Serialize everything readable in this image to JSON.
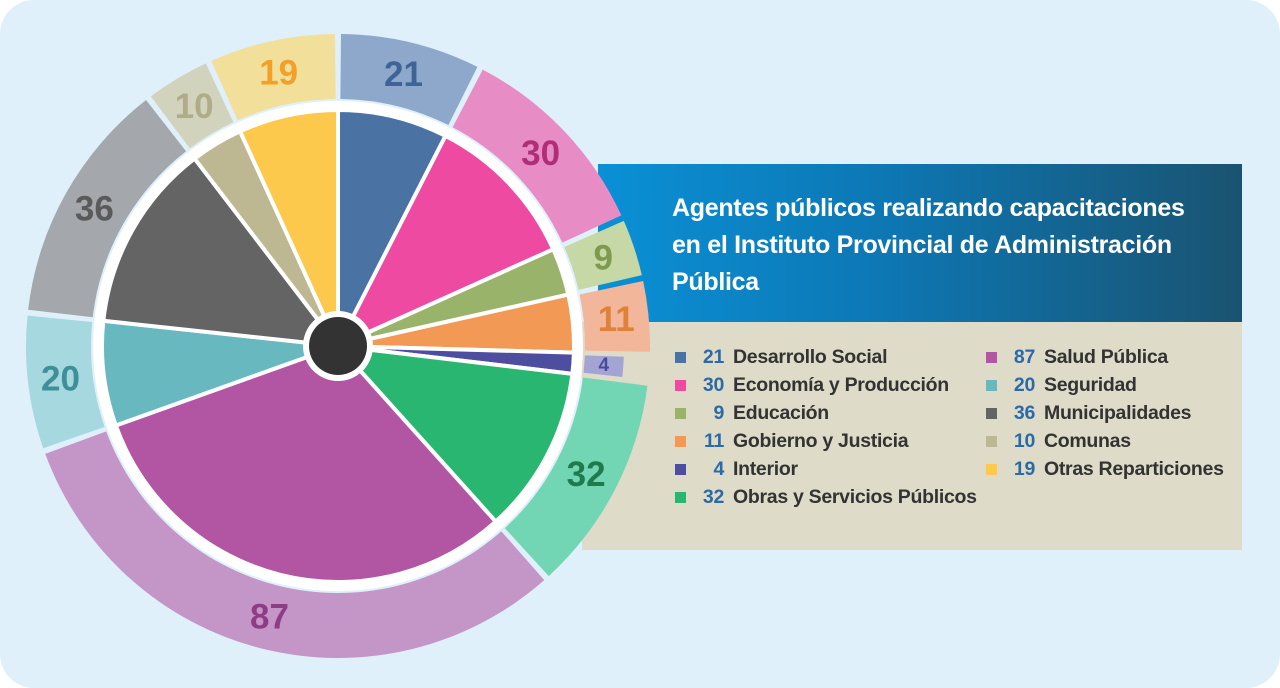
{
  "chart_data": {
    "type": "pie",
    "title": "Agentes públicos realizando capacitaciones en el Instituto Provincial de Administración Pública",
    "title_lines": [
      "Agentes públicos realizando capacitaciones",
      "en el Instituto Provincial de Administración",
      "Pública"
    ],
    "legend_placement": "right",
    "slices": [
      {
        "label": "Desarrollo Social",
        "value": 21,
        "color": "#4a72a3",
        "outer_color": "#8ea8cc",
        "label_color": "#3e6394"
      },
      {
        "label": "Economía y Producción",
        "value": 30,
        "color": "#ef4aa2",
        "outer_color": "#e88cc6",
        "label_color": "#b02e78"
      },
      {
        "label": "Educación",
        "value": 9,
        "color": "#9ab36b",
        "outer_color": "#c5d8a6",
        "label_color": "#7d9a4e"
      },
      {
        "label": "Gobierno y Justicia",
        "value": 11,
        "color": "#f29a55",
        "outer_color": "#f2b69a",
        "label_color": "#e0813a"
      },
      {
        "label": "Interior",
        "value": 4,
        "color": "#4e4ea0",
        "outer_color": "#a4a4d4",
        "label_color": "#4a4a9c"
      },
      {
        "label": "Obras y Servicios Públicos",
        "value": 32,
        "color": "#28b671",
        "outer_color": "#72d6b4",
        "label_color": "#1f7a4d"
      },
      {
        "label": "Salud Pública",
        "value": 87,
        "color": "#b255a3",
        "outer_color": "#c496c7",
        "label_color": "#8e3d85"
      },
      {
        "label": "Seguridad",
        "value": 20,
        "color": "#68b8c0",
        "outer_color": "#a6d8e0",
        "label_color": "#3e8f98"
      },
      {
        "label": "Municipalidades",
        "value": 36,
        "color": "#646464",
        "outer_color": "#a4a8ad",
        "label_color": "#5a5a5a"
      },
      {
        "label": "Comunas",
        "value": 10,
        "color": "#bdb891",
        "outer_color": "#d2d3bc",
        "label_color": "#b0ac8a"
      },
      {
        "label": "Otras Reparticiones",
        "value": 19,
        "color": "#fdc94c",
        "outer_color": "#f2df9a",
        "label_color": "#f2a029"
      }
    ],
    "legend_columns": [
      [
        "Desarrollo Social",
        "Economía y Producción",
        "Educación",
        "Gobierno y Justicia",
        "Interior",
        "Obras y Servicios Públicos"
      ],
      [
        "Salud Pública",
        "Seguridad",
        "Municipalidades",
        "Comunas",
        "Otras Reparticiones"
      ]
    ]
  },
  "colors": {
    "background": "#dff0fb",
    "legend_panel": "#dedbc8",
    "title_banner_start": "#0a90d6",
    "title_banner_end": "#1a5371",
    "legend_value_text": "#2b6aa8",
    "center_dot": "#333333"
  }
}
